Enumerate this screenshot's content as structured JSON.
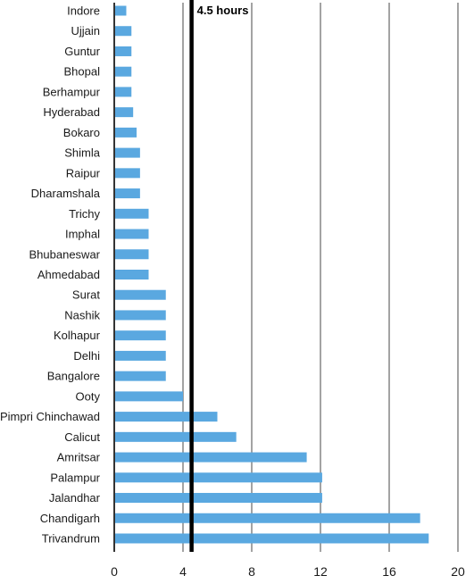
{
  "chart_data": {
    "type": "bar",
    "orientation": "horizontal",
    "categories": [
      "Indore",
      "Ujjain",
      "Guntur",
      "Bhopal",
      "Berhampur",
      "Hyderabad",
      "Bokaro",
      "Shimla",
      "Raipur",
      "Dharamshala",
      "Trichy",
      "Imphal",
      "Bhubaneswar",
      "Ahmedabad",
      "Surat",
      "Nashik",
      "Kolhapur",
      "Delhi",
      "Bangalore",
      "Ooty",
      "Pimpri Chinchawad",
      "Calicut",
      "Amritsar",
      "Palampur",
      "Jalandhar",
      "Chandigarh",
      "Trivandrum"
    ],
    "values": [
      0.7,
      1.0,
      1.0,
      1.0,
      1.0,
      1.1,
      1.3,
      1.5,
      1.5,
      1.5,
      2.0,
      2.0,
      2.0,
      2.0,
      3.0,
      3.0,
      3.0,
      3.0,
      3.0,
      4.0,
      6.0,
      7.1,
      11.2,
      12.1,
      12.1,
      17.8,
      18.3
    ],
    "xlim": [
      0,
      20
    ],
    "xticks": [
      "0",
      "4",
      "8",
      "12",
      "16",
      "20"
    ],
    "grid": true,
    "reference_line": {
      "value": 4.5,
      "label": "4.5 hours"
    },
    "bar_color": "#5aa8e0",
    "reference_color": "#000000"
  }
}
